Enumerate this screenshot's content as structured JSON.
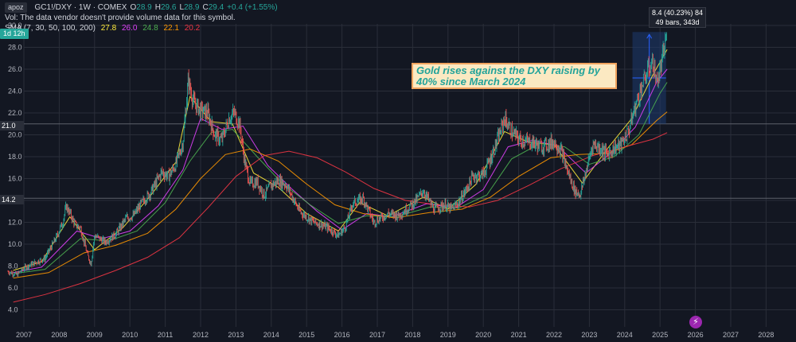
{
  "header": {
    "user_badge": "apoz",
    "symbol": "GC1!/DXY · 1W · COMEX",
    "ohlc": [
      {
        "label": "O",
        "value": "28.9"
      },
      {
        "label": "H",
        "value": "29.6"
      },
      {
        "label": "L",
        "value": "28.9"
      },
      {
        "label": "C",
        "value": "29.4"
      }
    ],
    "change": "+0.4 (+1.55%)",
    "volume_note": "Vol: The data vendor doesn't provide volume data for this symbol.",
    "sma_label": "SMA (7, 30, 50, 100, 200)",
    "sma_values": [
      {
        "value": "27.8",
        "color": "#ffeb3b"
      },
      {
        "value": "26.0",
        "color": "#e040fb"
      },
      {
        "value": "24.8",
        "color": "#4caf50"
      },
      {
        "value": "22.1",
        "color": "#ff9800"
      },
      {
        "value": "20.2",
        "color": "#f23645"
      }
    ],
    "interval_chip": "1d 12h"
  },
  "annotation": {
    "text": "Gold rises against the DXY raising by 40% since March 2024"
  },
  "measure_tool": {
    "line1": "8.4 (40.23%) 84",
    "line2": "49 bars, 343d"
  },
  "price_tags": [
    {
      "value": "21.0"
    },
    {
      "value": "14.2"
    }
  ],
  "flash_icon": "⚡",
  "colors": {
    "background": "#131722",
    "grid": "#2a2e39",
    "text": "#b2b5be",
    "up": "#26a69a",
    "down": "#ef5350",
    "annotation_bg": "#fbe9c2",
    "annotation_border": "#f0a35e",
    "annotation_text": "#22a39a",
    "measure_fill": "#1e3a6e"
  },
  "chart_data": {
    "type": "line",
    "title": "GC1!/DXY · 1W · COMEX",
    "xlabel": "",
    "ylabel": "",
    "ylim": [
      3.0,
      30.0
    ],
    "xlim": [
      2006.5,
      2028.2
    ],
    "y_ticks": [
      "4.0",
      "6.0",
      "8.0",
      "10.0",
      "12.0",
      "14.0",
      "16.0",
      "18.0",
      "20.0",
      "22.0",
      "24.0",
      "26.0",
      "28.0",
      "30.0"
    ],
    "x_ticks": [
      "2007",
      "2008",
      "2009",
      "2010",
      "2011",
      "2012",
      "2013",
      "2014",
      "2015",
      "2016",
      "2017",
      "2018",
      "2019",
      "2020",
      "2021",
      "2022",
      "2023",
      "2024",
      "2025",
      "2026",
      "2027",
      "2028"
    ],
    "grid": true,
    "price": {
      "x": [
        2006.55,
        2006.8,
        2007.0,
        2007.3,
        2007.6,
        2007.9,
        2008.1,
        2008.2,
        2008.45,
        2008.6,
        2008.8,
        2008.9,
        2009.0,
        2009.3,
        2009.6,
        2009.9,
        2010.1,
        2010.3,
        2010.6,
        2010.9,
        2011.1,
        2011.3,
        2011.5,
        2011.65,
        2011.8,
        2012.0,
        2012.2,
        2012.4,
        2012.6,
        2012.8,
        2012.95,
        2013.1,
        2013.25,
        2013.4,
        2013.6,
        2013.8,
        2014.0,
        2014.2,
        2014.4,
        2014.6,
        2014.8,
        2015.0,
        2015.2,
        2015.4,
        2015.6,
        2015.9,
        2016.1,
        2016.3,
        2016.6,
        2016.9,
        2017.1,
        2017.3,
        2017.6,
        2017.9,
        2018.1,
        2018.3,
        2018.6,
        2018.9,
        2019.1,
        2019.3,
        2019.5,
        2019.7,
        2020.0,
        2020.2,
        2020.4,
        2020.6,
        2020.8,
        2021.0,
        2021.2,
        2021.4,
        2021.6,
        2021.8,
        2022.0,
        2022.2,
        2022.4,
        2022.6,
        2022.75,
        2022.9,
        2023.1,
        2023.3,
        2023.5,
        2023.7,
        2023.9,
        2024.1,
        2024.3,
        2024.5,
        2024.7,
        2024.8,
        2024.9,
        2025.0,
        2025.1,
        2025.2
      ],
      "y": [
        7.5,
        7.2,
        7.8,
        8.3,
        8.7,
        10.5,
        12.0,
        13.5,
        11.8,
        11.5,
        9.0,
        8.2,
        10.8,
        10.2,
        10.9,
        12.4,
        12.6,
        13.6,
        14.8,
        16.6,
        16.2,
        17.3,
        19.3,
        25.0,
        23.0,
        22.2,
        22.0,
        20.0,
        19.5,
        21.5,
        22.0,
        21.0,
        17.5,
        15.5,
        15.7,
        14.5,
        15.4,
        15.8,
        15.5,
        14.3,
        13.0,
        12.5,
        12.0,
        11.8,
        11.5,
        10.8,
        11.6,
        13.7,
        14.2,
        12.0,
        12.4,
        12.8,
        12.6,
        13.4,
        14.0,
        14.9,
        13.2,
        13.6,
        13.2,
        13.8,
        14.9,
        16.2,
        16.4,
        17.8,
        19.5,
        21.5,
        20.3,
        19.6,
        19.4,
        19.3,
        18.9,
        19.1,
        19.4,
        18.6,
        16.5,
        14.8,
        14.6,
        16.6,
        19.2,
        18.8,
        18.2,
        18.8,
        19.1,
        20.3,
        22.6,
        24.6,
        26.2,
        26.6,
        24.8,
        25.8,
        27.5,
        29.4
      ]
    },
    "series": [
      {
        "name": "SMA 7",
        "color": "#ffeb3b",
        "x": [
          2006.7,
          2007.5,
          2008.3,
          2009.0,
          2009.8,
          2010.6,
          2011.3,
          2011.7,
          2012.3,
          2012.9,
          2013.5,
          2014.2,
          2015.0,
          2015.9,
          2016.5,
          2017.3,
          2018.3,
          2019.0,
          2019.8,
          2020.6,
          2021.3,
          2022.0,
          2022.8,
          2023.5,
          2024.2,
          2024.8,
          2025.2
        ],
        "y": [
          7.6,
          8.4,
          12.5,
          9.5,
          11.5,
          14.5,
          17.5,
          23.5,
          21.2,
          21.0,
          16.5,
          15.2,
          12.8,
          11.2,
          13.8,
          12.6,
          14.3,
          13.2,
          15.5,
          20.3,
          19.3,
          19.1,
          15.6,
          18.7,
          21.5,
          25.5,
          27.8
        ]
      },
      {
        "name": "SMA 30",
        "color": "#e040fb",
        "x": [
          2006.7,
          2007.5,
          2008.5,
          2009.2,
          2010.0,
          2010.8,
          2011.5,
          2012.0,
          2012.6,
          2013.2,
          2013.9,
          2014.6,
          2015.3,
          2016.0,
          2016.7,
          2017.4,
          2018.4,
          2019.2,
          2020.0,
          2020.7,
          2021.4,
          2022.1,
          2022.9,
          2023.6,
          2024.3,
          2024.9,
          2025.2
        ],
        "y": [
          7.4,
          7.9,
          11.2,
          10.5,
          11.2,
          13.5,
          16.8,
          21.5,
          20.5,
          20.8,
          17.2,
          15.0,
          13.0,
          11.3,
          12.8,
          12.5,
          13.7,
          13.3,
          15.0,
          18.9,
          19.5,
          19.0,
          16.5,
          18.3,
          20.7,
          24.8,
          26.0
        ]
      },
      {
        "name": "SMA 50",
        "color": "#4caf50",
        "x": [
          2006.7,
          2007.6,
          2008.6,
          2009.4,
          2010.2,
          2011.0,
          2011.7,
          2012.3,
          2012.9,
          2013.6,
          2014.3,
          2015.1,
          2015.9,
          2016.7,
          2017.5,
          2018.5,
          2019.3,
          2020.1,
          2020.8,
          2021.6,
          2022.3,
          2023.0,
          2023.7,
          2024.4,
          2025.0,
          2025.2
        ],
        "y": [
          7.3,
          7.7,
          10.5,
          10.3,
          11.2,
          13.8,
          17.6,
          20.2,
          20.5,
          18.0,
          15.6,
          13.6,
          11.9,
          12.6,
          12.5,
          13.4,
          13.3,
          14.5,
          17.8,
          19.2,
          18.9,
          17.3,
          18.0,
          20.0,
          23.8,
          24.8
        ]
      },
      {
        "name": "SMA 100",
        "color": "#ff9800",
        "x": [
          2006.7,
          2007.7,
          2008.7,
          2009.6,
          2010.5,
          2011.3,
          2012.0,
          2012.7,
          2013.4,
          2014.2,
          2015.0,
          2015.8,
          2016.6,
          2017.5,
          2018.5,
          2019.4,
          2020.2,
          2021.0,
          2021.9,
          2022.7,
          2023.5,
          2024.2,
          2024.9,
          2025.2
        ],
        "y": [
          6.9,
          7.4,
          9.2,
          9.9,
          11.0,
          13.2,
          16.0,
          18.2,
          18.7,
          17.6,
          15.5,
          13.6,
          12.8,
          12.4,
          12.9,
          13.2,
          14.3,
          16.2,
          17.9,
          18.2,
          18.3,
          19.1,
          21.3,
          22.1
        ]
      },
      {
        "name": "SMA 200",
        "color": "#f23645",
        "x": [
          2006.7,
          2007.6,
          2008.6,
          2009.6,
          2010.5,
          2011.4,
          2012.2,
          2013.0,
          2013.8,
          2014.5,
          2015.3,
          2016.1,
          2016.9,
          2017.8,
          2018.7,
          2019.6,
          2020.4,
          2021.3,
          2022.2,
          2023.1,
          2024.0,
          2024.8,
          2025.2
        ],
        "y": [
          4.7,
          5.4,
          6.4,
          7.6,
          8.8,
          10.6,
          13.3,
          16.2,
          18.1,
          18.5,
          17.9,
          16.6,
          15.1,
          14.0,
          13.6,
          13.4,
          14.0,
          15.4,
          16.9,
          18.1,
          18.9,
          19.6,
          20.2
        ]
      }
    ],
    "measure": {
      "x_start": 2024.22,
      "x_end": 2025.17,
      "y_start": 21.0,
      "y_end": 29.4
    },
    "horizontal_levels": [
      21.0,
      14.2
    ]
  }
}
